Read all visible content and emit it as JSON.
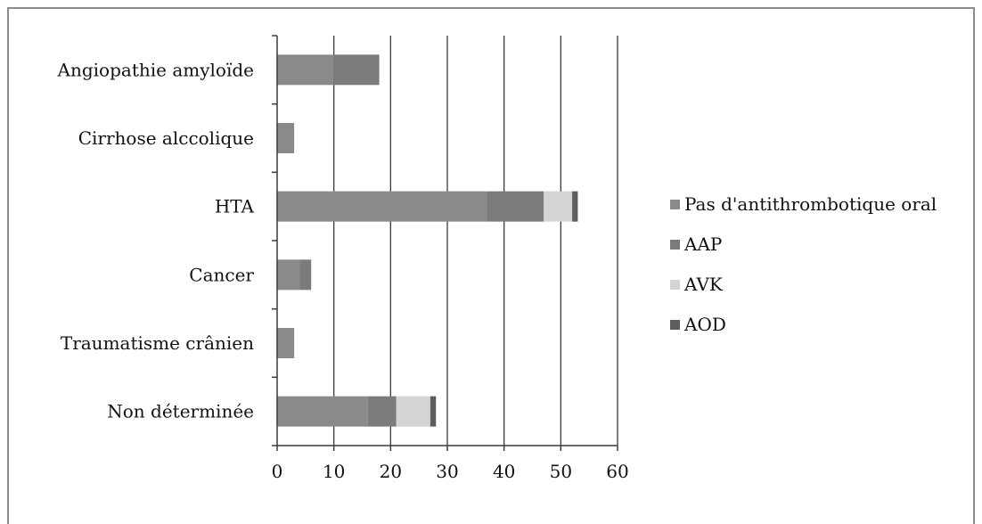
{
  "chart_data": {
    "type": "bar",
    "orientation": "horizontal",
    "stacked": true,
    "title": "",
    "xlabel": "",
    "ylabel": "",
    "categories": [
      "Angiopathie amyloïde",
      "Cirrhose alccolique",
      "HTA",
      "Cancer",
      "Traumatisme crânien",
      "Non déterminée"
    ],
    "series": [
      {
        "name": "Pas d'antithrombotique oral",
        "color": "#8a8a8a",
        "values": [
          10,
          3,
          37,
          4,
          3,
          16
        ]
      },
      {
        "name": "AAP",
        "color": "#7b7b7b",
        "values": [
          8,
          0,
          10,
          2,
          0,
          5
        ]
      },
      {
        "name": "AVK",
        "color": "#d4d4d4",
        "values": [
          0,
          0,
          5,
          0,
          0,
          6
        ]
      },
      {
        "name": "AOD",
        "color": "#5e5e5e",
        "values": [
          0,
          0,
          1,
          0,
          0,
          1
        ]
      }
    ],
    "xlim": [
      0,
      60
    ],
    "xticks": [
      "0",
      "10",
      "20",
      "30",
      "40",
      "50",
      "60"
    ],
    "grid": true,
    "legend_position": "right"
  }
}
